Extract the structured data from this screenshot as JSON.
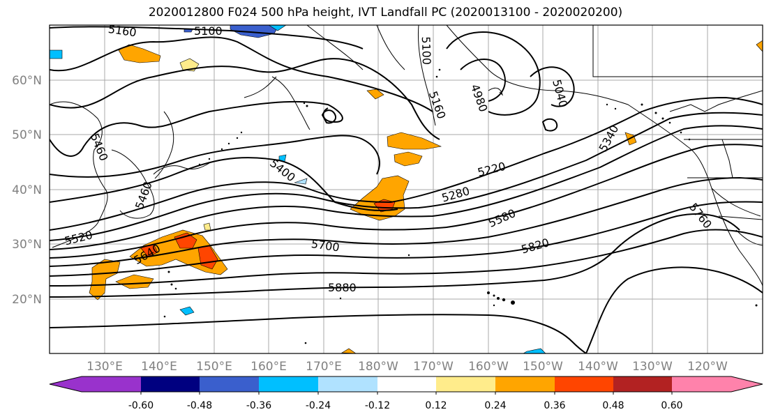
{
  "title": "2020012800 F024 500 hPa height, IVT Landfall PC (2020013100 - 2020020200)",
  "lat_ticks": [
    "60°N",
    "50°N",
    "40°N",
    "30°N",
    "20°N"
  ],
  "lon_ticks": [
    "130°E",
    "140°E",
    "150°E",
    "160°E",
    "170°E",
    "180°W",
    "170°W",
    "160°W",
    "150°W",
    "140°W",
    "130°W",
    "120°W"
  ],
  "contour_labels": [
    "5160",
    "5100",
    "5100",
    "5160",
    "4980",
    "5040",
    "5340",
    "5220",
    "5280",
    "5400",
    "5460",
    "5460",
    "5520",
    "5640",
    "5700",
    "5580",
    "5820",
    "5880",
    "5760"
  ],
  "colorbar": {
    "colors": [
      "#9932cc",
      "#000080",
      "#3a5fcd",
      "#00bfff",
      "#b0e2ff",
      "#ffffff",
      "#ffec8b",
      "#ffa500",
      "#ff4500",
      "#b22222",
      "#ff82ab"
    ],
    "labels": [
      "-0.60",
      "-0.48",
      "-0.36",
      "-0.24",
      "-0.12",
      "0.12",
      "0.24",
      "0.36",
      "0.48",
      "0.60"
    ]
  }
}
